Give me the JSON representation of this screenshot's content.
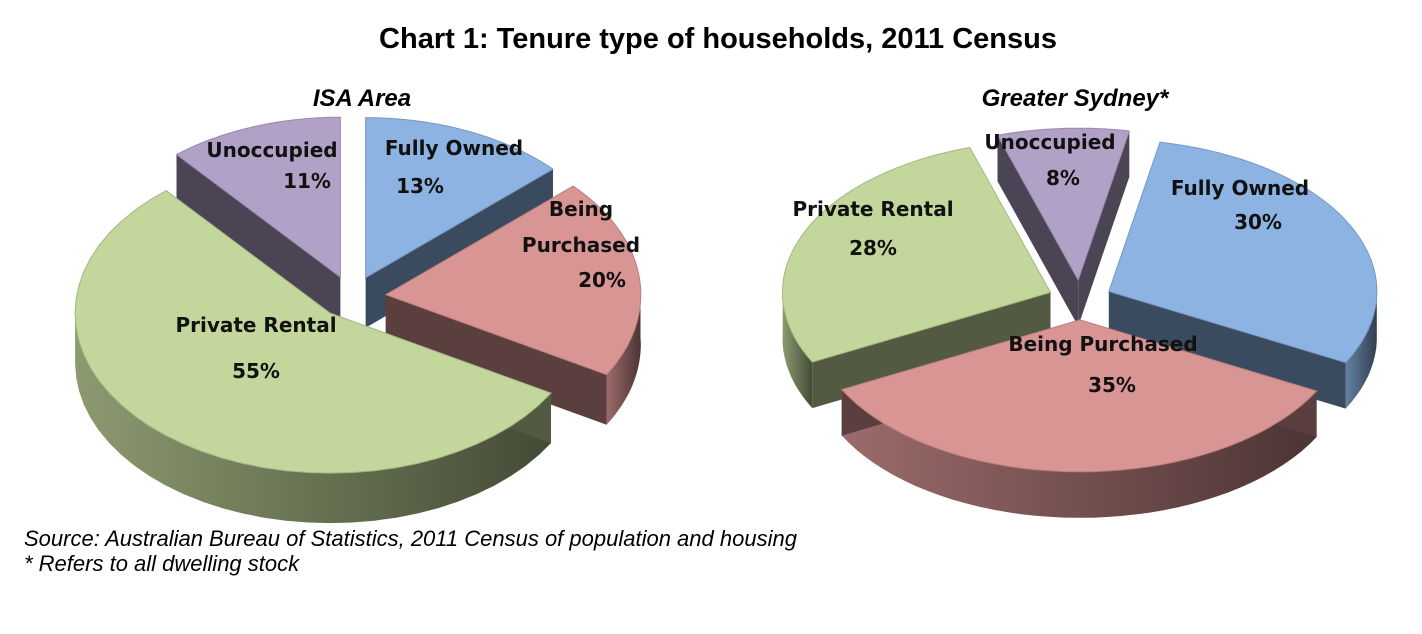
{
  "chart_title": "Chart 1: Tenure type of households, 2011 Census",
  "chart_data": [
    {
      "type": "pie",
      "title": "ISA Area",
      "categories": [
        "Fully Owned",
        "Being Purchased",
        "Private Rental",
        "Unoccupied"
      ],
      "values": [
        13,
        20,
        55,
        11
      ],
      "value_labels": [
        "13%",
        "20%",
        "55%",
        "11%"
      ],
      "label_lines": [
        [
          "Fully Owned"
        ],
        [
          "Being",
          "Purchased"
        ],
        [
          "Private Rental"
        ],
        [
          "Unoccupied"
        ]
      ],
      "colors": [
        "#8db3e2",
        "#d99594",
        "#c3d69b",
        "#b2a1c7"
      ],
      "style": "3d-exploded"
    },
    {
      "type": "pie",
      "title": "Greater Sydney*",
      "categories": [
        "Fully Owned",
        "Being Purchased",
        "Private Rental",
        "Unoccupied"
      ],
      "values": [
        30,
        35,
        28,
        8
      ],
      "value_labels": [
        "30%",
        "35%",
        "28%",
        "8%"
      ],
      "label_lines": [
        [
          "Fully Owned"
        ],
        [
          "Being Purchased"
        ],
        [
          "Private Rental"
        ],
        [
          "Unoccupied"
        ]
      ],
      "colors": [
        "#8db3e2",
        "#d99594",
        "#c3d69b",
        "#b2a1c7"
      ],
      "style": "3d-exploded"
    }
  ],
  "notes": {
    "source": "Source: Australian Bureau of Statistics, 2011 Census of population and housing",
    "footnote": "* Refers to all dwelling stock"
  }
}
